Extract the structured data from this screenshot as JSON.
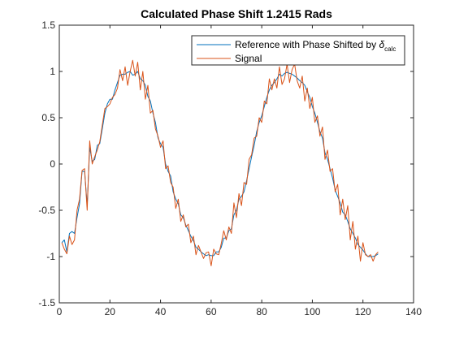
{
  "chart_data": {
    "type": "line",
    "title": "Calculated Phase Shift 1.2415 Rads",
    "xlabel": "",
    "ylabel": "",
    "xlim": [
      0,
      140
    ],
    "ylim": [
      -1.5,
      1.5
    ],
    "xticks": [
      0,
      20,
      40,
      60,
      80,
      100,
      120,
      140
    ],
    "yticks": [
      -1.5,
      -1,
      -0.5,
      0,
      0.5,
      1,
      1.5
    ],
    "xtick_labels": [
      "0",
      "20",
      "40",
      "60",
      "80",
      "100",
      "120",
      "140"
    ],
    "ytick_labels": [
      "-1.5",
      "-1",
      "-0.5",
      "0",
      "0.5",
      "1",
      "1.5"
    ],
    "grid": false,
    "legend_position": "top-right",
    "series": [
      {
        "name": "Reference with Phase Shifted by δ",
        "name_main": "Reference with Phase Shifted by ",
        "name_symbol": "δ",
        "name_subscript": "calc",
        "color": "#0072BD",
        "x": [
          1,
          2,
          3,
          4,
          5,
          6,
          7,
          8,
          9,
          10,
          11,
          12,
          13,
          14,
          15,
          16,
          17,
          18,
          19,
          20,
          21,
          22,
          23,
          24,
          25,
          26,
          27,
          28,
          29,
          30,
          31,
          32,
          33,
          34,
          35,
          36,
          37,
          38,
          39,
          40,
          41,
          42,
          43,
          44,
          45,
          46,
          47,
          48,
          49,
          50,
          51,
          52,
          53,
          54,
          55,
          56,
          57,
          58,
          59,
          60,
          61,
          62,
          63,
          64,
          65,
          66,
          67,
          68,
          69,
          70,
          71,
          72,
          73,
          74,
          75,
          76,
          77,
          78,
          79,
          80,
          81,
          82,
          83,
          84,
          85,
          86,
          87,
          88,
          89,
          90,
          91,
          92,
          93,
          94,
          95,
          96,
          97,
          98,
          99,
          100,
          101,
          102,
          103,
          104,
          105,
          106,
          107,
          108,
          109,
          110,
          111,
          112,
          113,
          114,
          115,
          116,
          117,
          118,
          119,
          120,
          121,
          122,
          123,
          124,
          125,
          126
        ],
        "y": [
          -0.85,
          -0.82,
          -0.95,
          -0.75,
          -0.73,
          -0.75,
          -0.58,
          -0.43,
          -0.08,
          -0.08,
          -0.45,
          0.18,
          0.03,
          0.05,
          0.2,
          0.22,
          0.38,
          0.55,
          0.65,
          0.7,
          0.7,
          0.8,
          0.88,
          0.96,
          0.97,
          0.97,
          0.99,
          1.0,
          0.96,
          0.97,
          1.0,
          0.92,
          0.9,
          0.85,
          0.73,
          0.68,
          0.55,
          0.45,
          0.28,
          0.22,
          0.18,
          0.0,
          -0.08,
          -0.13,
          -0.3,
          -0.38,
          -0.43,
          -0.55,
          -0.58,
          -0.66,
          -0.72,
          -0.78,
          -0.83,
          -0.9,
          -0.92,
          -0.95,
          -0.97,
          -0.99,
          -0.98,
          -0.99,
          -0.99,
          -0.95,
          -0.95,
          -0.9,
          -0.8,
          -0.8,
          -0.72,
          -0.7,
          -0.55,
          -0.5,
          -0.38,
          -0.35,
          -0.3,
          -0.18,
          -0.05,
          0.08,
          0.2,
          0.35,
          0.45,
          0.52,
          0.62,
          0.72,
          0.8,
          0.85,
          0.88,
          0.92,
          0.97,
          0.95,
          0.98,
          0.99,
          0.98,
          0.97,
          0.95,
          0.93,
          0.9,
          0.88,
          0.85,
          0.78,
          0.72,
          0.62,
          0.55,
          0.45,
          0.35,
          0.28,
          0.12,
          0.05,
          -0.05,
          -0.15,
          -0.28,
          -0.35,
          -0.42,
          -0.52,
          -0.55,
          -0.62,
          -0.7,
          -0.75,
          -0.8,
          -0.87,
          -0.9,
          -0.93,
          -0.97,
          -1.0,
          -1.0,
          -1.0,
          -0.99,
          -0.97
        ]
      },
      {
        "name": "Signal",
        "color": "#D95319",
        "x": [
          1,
          2,
          3,
          4,
          5,
          6,
          7,
          8,
          9,
          10,
          11,
          12,
          13,
          14,
          15,
          16,
          17,
          18,
          19,
          20,
          21,
          22,
          23,
          24,
          25,
          26,
          27,
          28,
          29,
          30,
          31,
          32,
          33,
          34,
          35,
          36,
          37,
          38,
          39,
          40,
          41,
          42,
          43,
          44,
          45,
          46,
          47,
          48,
          49,
          50,
          51,
          52,
          53,
          54,
          55,
          56,
          57,
          58,
          59,
          60,
          61,
          62,
          63,
          64,
          65,
          66,
          67,
          68,
          69,
          70,
          71,
          72,
          73,
          74,
          75,
          76,
          77,
          78,
          79,
          80,
          81,
          82,
          83,
          84,
          85,
          86,
          87,
          88,
          89,
          90,
          91,
          92,
          93,
          94,
          95,
          96,
          97,
          98,
          99,
          100,
          101,
          102,
          103,
          104,
          105,
          106,
          107,
          108,
          109,
          110,
          111,
          112,
          113,
          114,
          115,
          116,
          117,
          118,
          119,
          120,
          121,
          122,
          123,
          124,
          125,
          126
        ],
        "y": [
          -0.85,
          -0.92,
          -0.97,
          -0.78,
          -0.87,
          -0.82,
          -0.5,
          -0.38,
          -0.07,
          -0.05,
          -0.5,
          0.25,
          0.0,
          0.08,
          0.15,
          0.24,
          0.42,
          0.6,
          0.62,
          0.65,
          0.72,
          0.75,
          0.82,
          1.02,
          0.9,
          1.05,
          0.85,
          1.0,
          1.12,
          0.95,
          1.1,
          0.8,
          1.0,
          0.7,
          0.85,
          0.55,
          0.58,
          0.38,
          0.3,
          0.18,
          0.25,
          -0.05,
          -0.02,
          -0.2,
          -0.25,
          -0.48,
          -0.38,
          -0.62,
          -0.55,
          -0.68,
          -0.65,
          -0.85,
          -0.78,
          -0.98,
          -0.88,
          -0.95,
          -1.02,
          -0.96,
          -0.95,
          -1.1,
          -0.92,
          -0.97,
          -0.98,
          -0.86,
          -0.72,
          -0.82,
          -0.68,
          -0.75,
          -0.42,
          -0.58,
          -0.32,
          -0.45,
          -0.2,
          -0.22,
          0.05,
          0.1,
          0.28,
          0.3,
          0.5,
          0.45,
          0.68,
          0.65,
          0.92,
          0.8,
          0.92,
          0.82,
          1.05,
          0.86,
          0.92,
          1.08,
          0.88,
          1.02,
          1.08,
          0.9,
          0.82,
          0.95,
          0.68,
          0.82,
          0.6,
          0.72,
          0.45,
          0.52,
          0.3,
          0.4,
          0.05,
          0.15,
          -0.08,
          -0.05,
          -0.3,
          -0.22,
          -0.55,
          -0.38,
          -0.6,
          -0.45,
          -0.82,
          -0.62,
          -0.92,
          -0.78,
          -1.05,
          -0.85,
          -0.98,
          -1.0,
          -0.98,
          -1.05,
          -0.98,
          -0.95
        ]
      }
    ]
  }
}
